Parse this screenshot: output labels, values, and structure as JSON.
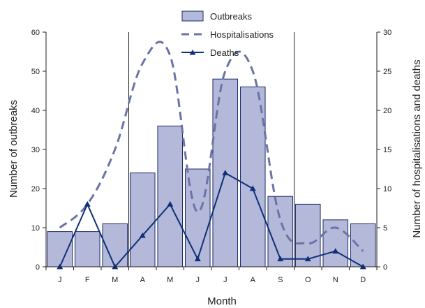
{
  "chart_data": {
    "type": "bar+line",
    "categories": [
      "J",
      "F",
      "M",
      "A",
      "M",
      "J",
      "J",
      "A",
      "S",
      "O",
      "N",
      "D"
    ],
    "xlabel": "Month",
    "ylabel_left": "Number of outbreaks",
    "ylabel_right": "Number of hospitalisations and deaths",
    "ylim_left": [
      0,
      60
    ],
    "yticks_left": [
      0,
      10,
      20,
      30,
      40,
      50,
      60
    ],
    "ylim_right": [
      0,
      30
    ],
    "yticks_right": [
      0,
      5,
      10,
      15,
      20,
      25,
      30
    ],
    "series": [
      {
        "name": "Outbreaks",
        "type": "bar",
        "axis": "left",
        "values": [
          9,
          9,
          11,
          24,
          36,
          25,
          48,
          46,
          18,
          16,
          12,
          11
        ]
      },
      {
        "name": "Hospitalisations",
        "type": "line-dashed",
        "axis": "right",
        "values": [
          5,
          8,
          15,
          26,
          27,
          7,
          25,
          25,
          6,
          3,
          5,
          2
        ]
      },
      {
        "name": "Deaths",
        "type": "line-marker",
        "axis": "right",
        "values": [
          0,
          8,
          0,
          4,
          8,
          1,
          12,
          10,
          1,
          1,
          2,
          0
        ]
      }
    ],
    "vertical_reference_lines_after_categories": [
      "M",
      "S"
    ],
    "legend_position": "top-center",
    "colors": {
      "bar_fill": "#b4b9d9",
      "bar_stroke": "#1b2a6b",
      "hospitalisations": "#6a73a8",
      "deaths": "#0f2f7a",
      "axis": "#222222"
    }
  }
}
